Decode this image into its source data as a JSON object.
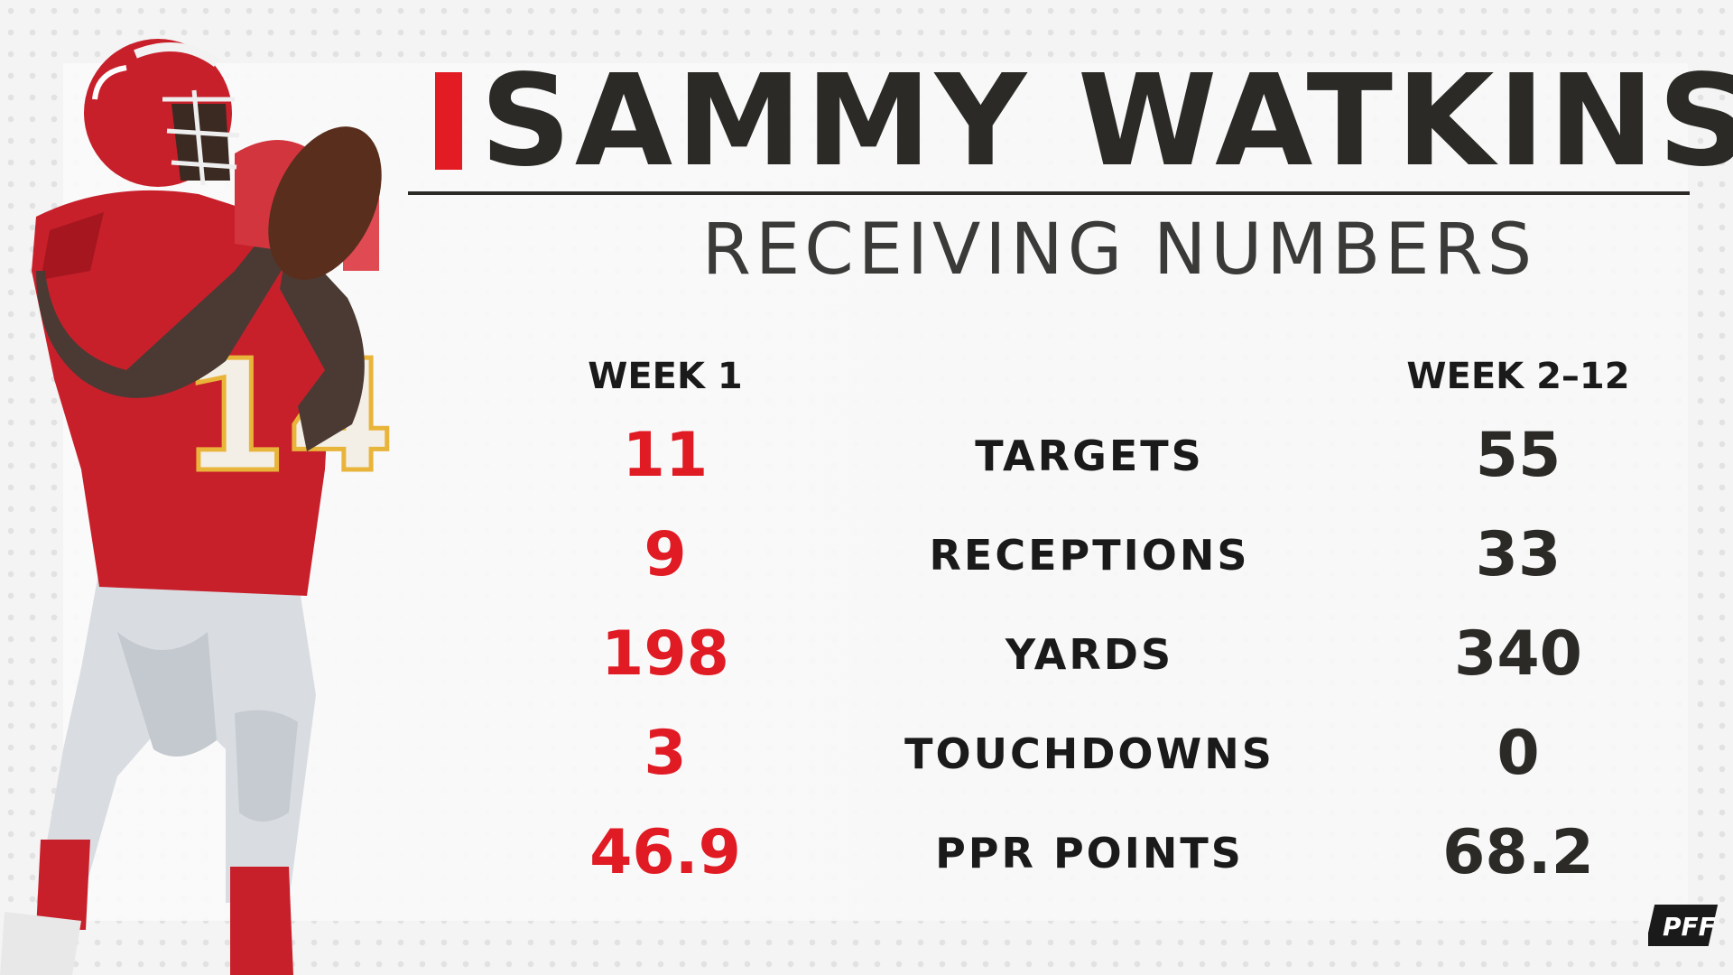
{
  "header": {
    "player_name": "SAMMY WATKINS",
    "subtitle": "RECEIVING NUMBERS"
  },
  "columns": {
    "week1": "WEEK 1",
    "weeks_rest": "WEEK 2–12"
  },
  "stats": [
    {
      "label": "TARGETS",
      "week1": "11",
      "weeks_rest": "55"
    },
    {
      "label": "RECEPTIONS",
      "week1": "9",
      "weeks_rest": "33"
    },
    {
      "label": "YARDS",
      "week1": "198",
      "weeks_rest": "340"
    },
    {
      "label": "TOUCHDOWNS",
      "week1": "3",
      "weeks_rest": "0"
    },
    {
      "label": "PPR POINTS",
      "week1": "46.9",
      "weeks_rest": "68.2"
    }
  ],
  "player_image": {
    "jersey_number": "14"
  },
  "brand": {
    "logo_text": "PFF"
  },
  "colors": {
    "accent_red": "#e31b23",
    "dark_text": "#2b2a27",
    "jersey_red": "#c8202b"
  }
}
